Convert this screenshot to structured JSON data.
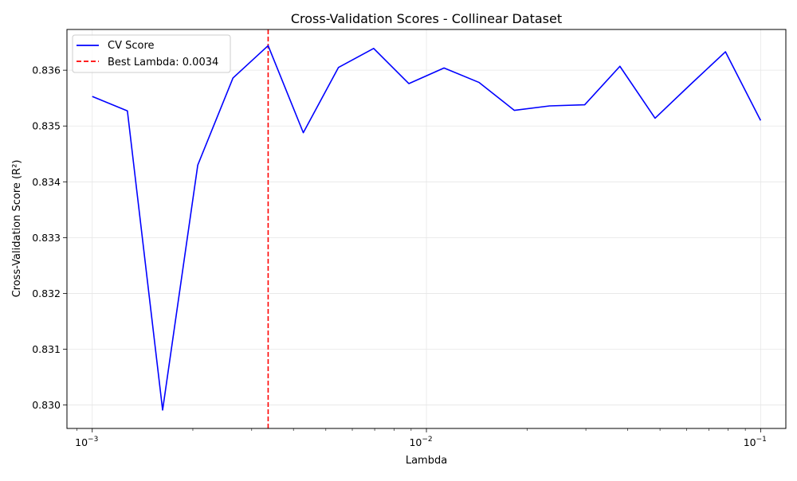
{
  "chart_data": {
    "type": "line",
    "title": "Cross-Validation Scores - Collinear Dataset",
    "xlabel": "Lambda",
    "ylabel": "Cross-Validation Score (R²)",
    "xscale": "log",
    "xlim": [
      0.00084,
      0.119
    ],
    "ylim": [
      0.82958,
      0.83673
    ],
    "grid": true,
    "legend_position": "top-left",
    "x_ticks": [
      {
        "value": 0.001,
        "base": "10",
        "exp": "−3"
      },
      {
        "value": 0.01,
        "base": "10",
        "exp": "−2"
      },
      {
        "value": 0.1,
        "base": "10",
        "exp": "−1"
      }
    ],
    "y_ticks": [
      {
        "value": 0.83,
        "label": "0.830"
      },
      {
        "value": 0.831,
        "label": "0.831"
      },
      {
        "value": 0.832,
        "label": "0.832"
      },
      {
        "value": 0.833,
        "label": "0.833"
      },
      {
        "value": 0.834,
        "label": "0.834"
      },
      {
        "value": 0.835,
        "label": "0.835"
      },
      {
        "value": 0.836,
        "label": "0.836"
      }
    ],
    "series": [
      {
        "name": "CV Score",
        "color": "#0000ff",
        "style": "solid",
        "x": [
          0.001,
          0.001274,
          0.001624,
          0.002069,
          0.002637,
          0.00336,
          0.004281,
          0.005456,
          0.006952,
          0.008859,
          0.01129,
          0.01438,
          0.01833,
          0.02336,
          0.02976,
          0.03793,
          0.04833,
          0.06158,
          0.07848,
          0.1
        ],
        "y": [
          0.83553,
          0.83527,
          0.82991,
          0.8343,
          0.83586,
          0.83644,
          0.83488,
          0.83605,
          0.83639,
          0.83576,
          0.83604,
          0.83578,
          0.83528,
          0.83536,
          0.83538,
          0.83607,
          0.83514,
          0.83574,
          0.83633,
          0.8351
        ]
      }
    ],
    "reference_lines": [
      {
        "name": "Best Lambda: 0.0034",
        "orientation": "vertical",
        "x": 0.00336,
        "color": "#ff0000",
        "style": "dashed"
      }
    ]
  }
}
